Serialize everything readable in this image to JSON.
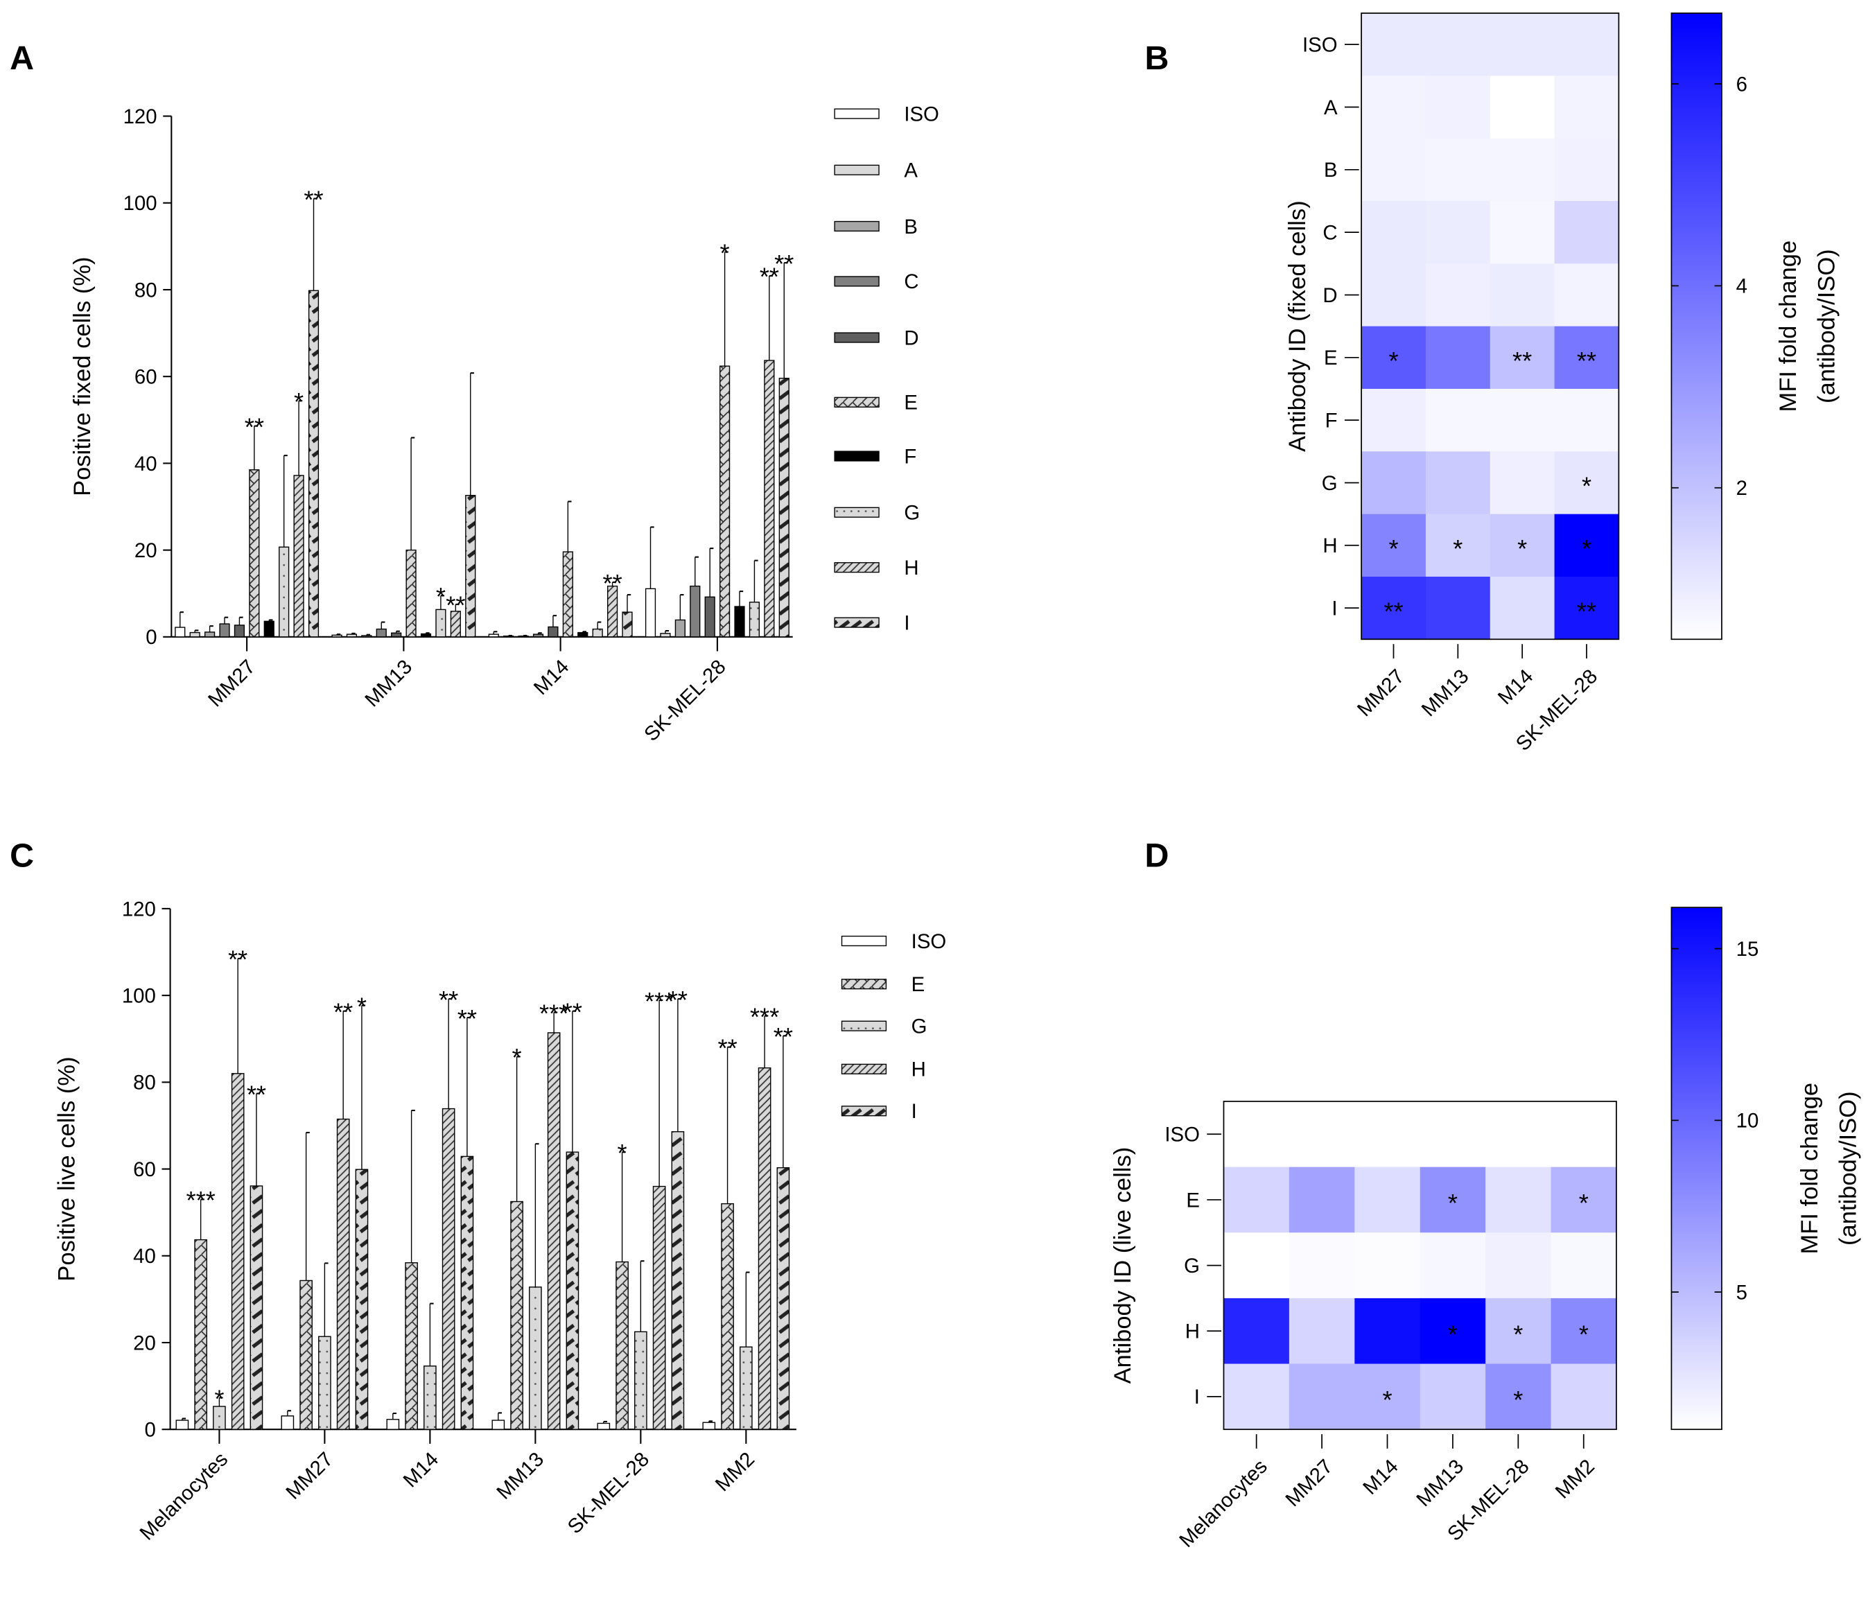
{
  "panels": [
    "A",
    "B",
    "C",
    "D"
  ],
  "chart_data": [
    {
      "type": "bar",
      "panel": "A",
      "ylabel": "Positive fixed cells (%)",
      "ylim": [
        0,
        120
      ],
      "yticks": [
        0,
        20,
        40,
        60,
        80,
        100,
        120
      ],
      "categories": [
        "MM27",
        "MM13",
        "M14",
        "SK-MEL-28"
      ],
      "legend_position": "right",
      "series": [
        {
          "name": "ISO",
          "fill": "#ffffff",
          "values": [
            2.2,
            0.4,
            0.6,
            11.1
          ],
          "errors": [
            5.7,
            0.6,
            1.2,
            25.3
          ],
          "stars": [
            "",
            "",
            "",
            ""
          ]
        },
        {
          "name": "A",
          "fill": "#d9d9d9",
          "values": [
            1.0,
            0.6,
            0.2,
            0.8
          ],
          "errors": [
            1.5,
            0.8,
            0.3,
            1.4
          ],
          "stars": [
            "",
            "",
            "",
            ""
          ]
        },
        {
          "name": "B",
          "fill": "#a6a6a6",
          "values": [
            1.1,
            0.3,
            0.2,
            3.9
          ],
          "errors": [
            2.5,
            0.5,
            0.3,
            9.7
          ],
          "stars": [
            "",
            "",
            "",
            ""
          ]
        },
        {
          "name": "C",
          "fill": "#808080",
          "values": [
            3.0,
            1.8,
            0.6,
            11.7
          ],
          "errors": [
            4.5,
            3.4,
            0.9,
            18.4
          ],
          "stars": [
            "",
            "",
            "",
            ""
          ]
        },
        {
          "name": "D",
          "fill": "#5f5f5f",
          "values": [
            2.7,
            0.9,
            2.3,
            9.2
          ],
          "errors": [
            4.5,
            1.3,
            4.9,
            20.4
          ],
          "stars": [
            "",
            "",
            "",
            ""
          ]
        },
        {
          "name": "E",
          "fill": "pattern-e",
          "values": [
            38.5,
            20.0,
            19.6,
            62.4
          ],
          "errors": [
            48.6,
            45.9,
            31.2,
            88.7
          ],
          "stars": [
            "**",
            "",
            "",
            "*"
          ]
        },
        {
          "name": "F",
          "fill": "#000000",
          "values": [
            3.6,
            0.7,
            1.0,
            7.0
          ],
          "errors": [
            3.9,
            0.9,
            1.2,
            10.5
          ],
          "stars": [
            "",
            "",
            "",
            ""
          ]
        },
        {
          "name": "G",
          "fill": "pattern-g",
          "values": [
            20.7,
            6.3,
            1.8,
            8.0
          ],
          "errors": [
            41.8,
            9.5,
            3.4,
            17.6
          ],
          "stars": [
            "",
            "*",
            "",
            ""
          ]
        },
        {
          "name": "H",
          "fill": "pattern-h",
          "values": [
            37.2,
            5.9,
            11.7,
            63.7
          ],
          "errors": [
            54.4,
            7.5,
            12.6,
            83.2
          ],
          "stars": [
            "*",
            "**",
            "**",
            "**"
          ]
        },
        {
          "name": "I",
          "fill": "pattern-i",
          "values": [
            79.8,
            32.6,
            5.7,
            59.6
          ],
          "errors": [
            101.0,
            60.8,
            9.7,
            86.2
          ],
          "stars": [
            "**",
            "",
            "",
            "**"
          ]
        }
      ]
    },
    {
      "type": "heatmap",
      "panel": "B",
      "ylabel": "Antibody ID (fixed cells)",
      "colorbar_label": [
        "MFI fold change",
        "(antibody/ISO)"
      ],
      "colorbar_range": [
        0.5,
        6.7
      ],
      "colorbar_ticks": [
        2,
        4,
        6
      ],
      "color_low": "#ffffff",
      "color_high": "#0000ff",
      "rows": [
        "ISO",
        "A",
        "B",
        "C",
        "D",
        "E",
        "F",
        "G",
        "H",
        "I"
      ],
      "columns": [
        "MM27",
        "MM13",
        "M14",
        "SK-MEL-28"
      ],
      "values": [
        [
          1.0,
          1.0,
          1.0,
          1.0
        ],
        [
          0.8,
          0.85,
          0.5,
          0.8
        ],
        [
          0.8,
          0.75,
          0.75,
          0.85
        ],
        [
          1.0,
          0.95,
          0.7,
          1.5
        ],
        [
          1.0,
          0.9,
          0.95,
          0.8
        ],
        [
          4.5,
          3.8,
          2.0,
          3.8
        ],
        [
          0.9,
          0.7,
          0.7,
          0.7
        ],
        [
          2.2,
          1.8,
          0.9,
          1.1
        ],
        [
          3.5,
          1.6,
          1.8,
          6.7
        ],
        [
          5.4,
          5.2,
          1.3,
          6.2
        ]
      ],
      "stars": [
        [
          "",
          "",
          "",
          ""
        ],
        [
          "",
          "",
          "",
          ""
        ],
        [
          "",
          "",
          "",
          ""
        ],
        [
          "",
          "",
          "",
          ""
        ],
        [
          "",
          "",
          "",
          ""
        ],
        [
          "*",
          "",
          "**",
          "**"
        ],
        [
          "",
          "",
          "",
          ""
        ],
        [
          "",
          "",
          "",
          "*"
        ],
        [
          "*",
          "*",
          "*",
          "*"
        ],
        [
          "**",
          "",
          "",
          "**"
        ]
      ]
    },
    {
      "type": "bar",
      "panel": "C",
      "ylabel": "Positive live cells (%)",
      "ylim": [
        0,
        120
      ],
      "yticks": [
        0,
        20,
        40,
        60,
        80,
        100,
        120
      ],
      "categories": [
        "Melanocytes",
        "MM27",
        "M14",
        "MM13",
        "SK-MEL-28",
        "MM2"
      ],
      "legend_position": "right",
      "series": [
        {
          "name": "ISO",
          "fill": "#ffffff",
          "values": [
            2.1,
            3.1,
            2.3,
            2.1,
            1.4,
            1.6
          ],
          "errors": [
            2.5,
            4.3,
            3.7,
            3.8,
            1.8,
            1.9
          ],
          "stars": [
            "",
            "",
            "",
            "",
            "",
            ""
          ]
        },
        {
          "name": "E",
          "fill": "pattern-e",
          "values": [
            43.7,
            34.3,
            38.4,
            52.5,
            38.6,
            52.0
          ],
          "errors": [
            53.0,
            68.4,
            73.5,
            85.9,
            63.9,
            88.1
          ],
          "stars": [
            "***",
            "",
            "",
            "*",
            "*",
            "**"
          ]
        },
        {
          "name": "G",
          "fill": "pattern-g",
          "values": [
            5.3,
            21.4,
            14.6,
            32.8,
            22.5,
            19.0
          ],
          "errors": [
            7.3,
            38.3,
            29.0,
            65.8,
            38.8,
            36.2
          ],
          "stars": [
            "*",
            "",
            "",
            "",
            "",
            ""
          ]
        },
        {
          "name": "H",
          "fill": "pattern-h",
          "values": [
            82.0,
            71.5,
            73.9,
            91.4,
            56.0,
            83.3
          ],
          "errors": [
            108.5,
            96.4,
            99.2,
            96.1,
            98.9,
            95.3
          ],
          "stars": [
            "**",
            "**",
            "**",
            "***",
            "***",
            "***"
          ]
        },
        {
          "name": "I",
          "fill": "pattern-i",
          "values": [
            56.1,
            59.9,
            62.9,
            63.9,
            68.6,
            60.3
          ],
          "errors": [
            77.4,
            97.7,
            94.9,
            96.4,
            99.2,
            90.7
          ],
          "stars": [
            "**",
            "*",
            "**",
            "**",
            "**",
            "**"
          ]
        }
      ]
    },
    {
      "type": "heatmap",
      "panel": "D",
      "ylabel": "Antibody ID (live cells)",
      "colorbar_label": [
        "MFI fold change",
        "(antibody/ISO)"
      ],
      "colorbar_range": [
        1.0,
        16.2
      ],
      "colorbar_ticks": [
        5,
        10,
        15
      ],
      "color_low": "#ffffff",
      "color_high": "#0000ff",
      "rows": [
        "ISO",
        "E",
        "G",
        "H",
        "I"
      ],
      "columns": [
        "Melanocytes",
        "MM27",
        "M14",
        "MM13",
        "SK-MEL-28",
        "MM2"
      ],
      "values": [
        [
          1.0,
          1.0,
          1.0,
          1.0,
          1.0,
          1.0
        ],
        [
          3.5,
          6.5,
          3.0,
          7.5,
          2.7,
          5.5
        ],
        [
          1.0,
          1.3,
          1.2,
          1.5,
          1.9,
          1.4
        ],
        [
          14.0,
          3.5,
          15.5,
          16.2,
          4.5,
          8.0
        ],
        [
          3.0,
          5.5,
          5.5,
          4.0,
          7.5,
          3.5
        ]
      ],
      "stars": [
        [
          "",
          "",
          "",
          "",
          "",
          ""
        ],
        [
          "",
          "",
          "",
          "*",
          "",
          "*"
        ],
        [
          "",
          "",
          "",
          "",
          "",
          ""
        ],
        [
          "",
          "",
          "",
          "*",
          "*",
          "*"
        ],
        [
          "",
          "",
          "*",
          "",
          "*",
          ""
        ]
      ]
    }
  ]
}
